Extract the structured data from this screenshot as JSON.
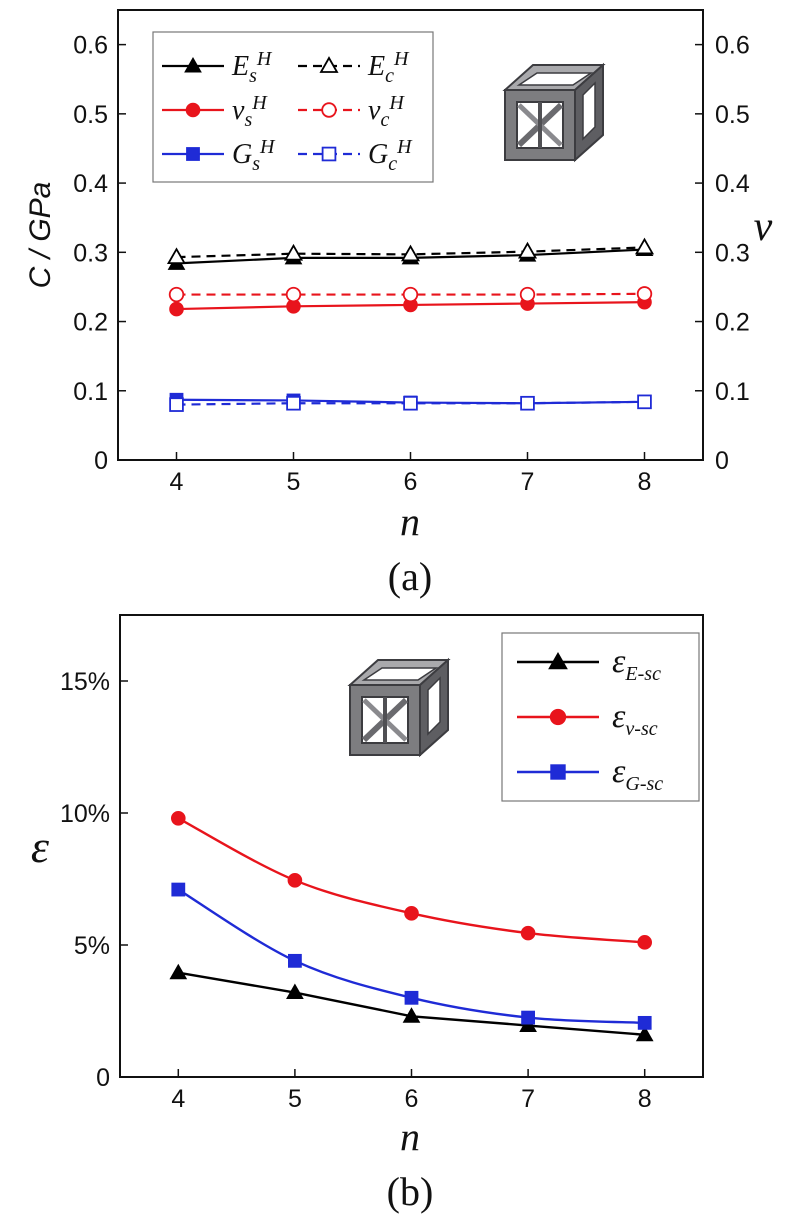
{
  "chart_data": [
    {
      "type": "line",
      "panel_label": "(a)",
      "x": [
        4,
        5,
        6,
        7,
        8
      ],
      "xlabel": "n",
      "x_ticks": [
        "4",
        "5",
        "6",
        "7",
        "8"
      ],
      "ylabel_left": "C / GPa",
      "ylabel_right": "ν",
      "ylim": [
        0,
        0.65
      ],
      "y_ticks": [
        "0",
        "0.1",
        "0.2",
        "0.3",
        "0.4",
        "0.5",
        "0.6"
      ],
      "y_right_ticks": [
        "0",
        "0.1",
        "0.2",
        "0.3",
        "0.4",
        "0.5",
        "0.6"
      ],
      "legend_position": "top-left",
      "series": [
        {
          "name": "E_s^H",
          "label_base": "E",
          "label_sub": "s",
          "label_sup": "H",
          "color": "#000000",
          "marker": "triangle",
          "filled": true,
          "dashed": false,
          "values": [
            0.284,
            0.292,
            0.292,
            0.296,
            0.304
          ]
        },
        {
          "name": "E_c^H",
          "label_base": "E",
          "label_sub": "c",
          "label_sup": "H",
          "color": "#000000",
          "marker": "triangle",
          "filled": false,
          "dashed": true,
          "values": [
            0.293,
            0.298,
            0.297,
            0.301,
            0.307
          ]
        },
        {
          "name": "v_s^H",
          "label_base": "v",
          "label_sub": "s",
          "label_sup": "H",
          "color": "#e8141c",
          "marker": "circle",
          "filled": true,
          "dashed": false,
          "values": [
            0.218,
            0.222,
            0.224,
            0.226,
            0.228
          ]
        },
        {
          "name": "v_c^H",
          "label_base": "v",
          "label_sub": "c",
          "label_sup": "H",
          "color": "#e8141c",
          "marker": "circle",
          "filled": false,
          "dashed": true,
          "values": [
            0.239,
            0.239,
            0.239,
            0.239,
            0.24
          ]
        },
        {
          "name": "G_s^H",
          "label_base": "G",
          "label_sub": "s",
          "label_sup": "H",
          "color": "#1f2bd6",
          "marker": "square",
          "filled": true,
          "dashed": false,
          "values": [
            0.087,
            0.086,
            0.083,
            0.082,
            0.084
          ]
        },
        {
          "name": "G_c^H",
          "label_base": "G",
          "label_sub": "c",
          "label_sup": "H",
          "color": "#1f2bd6",
          "marker": "square",
          "filled": false,
          "dashed": true,
          "values": [
            0.08,
            0.082,
            0.082,
            0.082,
            0.084
          ]
        }
      ]
    },
    {
      "type": "line",
      "panel_label": "(b)",
      "x": [
        4,
        5,
        6,
        7,
        8
      ],
      "xlabel": "n",
      "x_ticks": [
        "4",
        "5",
        "6",
        "7",
        "8"
      ],
      "ylabel": "ε",
      "ylim": [
        0,
        17.5
      ],
      "y_tick_values": [
        0,
        5,
        10,
        15
      ],
      "y_ticks": [
        "0",
        "5%",
        "10%",
        "15%"
      ],
      "legend_position": "top-right",
      "series": [
        {
          "name": "ε_E-sc",
          "label_base": "ε",
          "label_sub": "E-sc",
          "color": "#000000",
          "marker": "triangle",
          "smooth": false,
          "values": [
            3.95,
            3.2,
            2.3,
            1.95,
            1.6
          ]
        },
        {
          "name": "ε_v-sc",
          "label_base": "ε",
          "label_sub": "v-sc",
          "color": "#e8141c",
          "marker": "circle",
          "smooth": true,
          "values": [
            9.8,
            7.45,
            6.2,
            5.45,
            5.1
          ]
        },
        {
          "name": "ε_G-sc",
          "label_base": "ε",
          "label_sub": "G-sc",
          "color": "#1f2bd6",
          "marker": "square",
          "smooth": true,
          "values": [
            7.1,
            4.4,
            3.0,
            2.25,
            2.05
          ]
        }
      ]
    }
  ],
  "icons": {
    "panel_a_inset": "cube-lattice-icon",
    "panel_b_inset": "cube-lattice-icon"
  }
}
